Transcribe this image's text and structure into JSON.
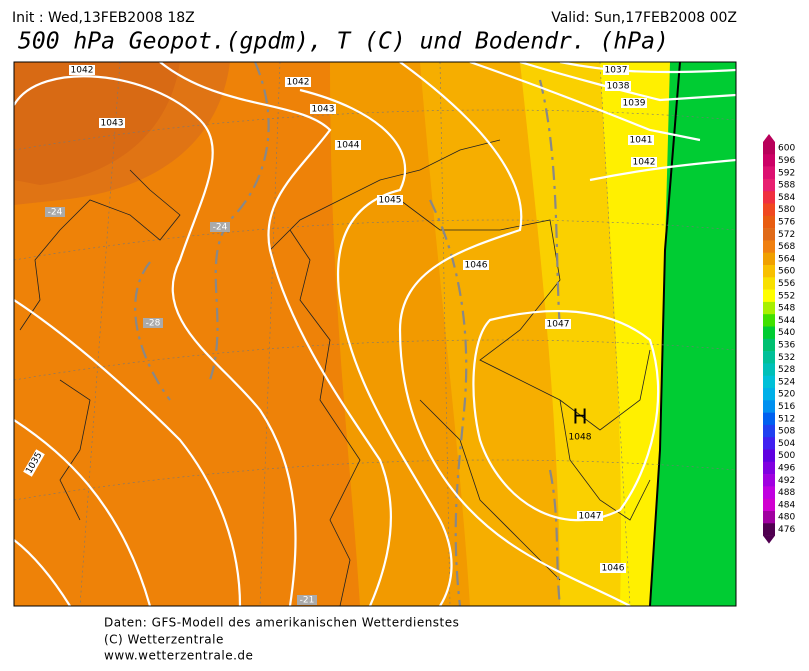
{
  "header": {
    "init": "Init : Wed,13FEB2008 18Z",
    "valid": "Valid: Sun,17FEB2008 00Z",
    "title": "500 hPa Geopot.(gpdm), T (C) und Bodendr. (hPa)"
  },
  "isobar_labels": [
    1042,
    1043,
    1042,
    1043,
    1044,
    1045,
    1046,
    1047,
    1048,
    1047,
    1046,
    1037,
    1038,
    1039,
    1041,
    1042,
    1035
  ],
  "high_label": "H",
  "isotherm_labels": [
    -24,
    -24,
    -28,
    -21
  ],
  "colorbar": {
    "ticks": [
      600,
      596,
      592,
      588,
      584,
      580,
      576,
      572,
      568,
      564,
      560,
      556,
      552,
      548,
      544,
      540,
      536,
      532,
      528,
      524,
      520,
      516,
      512,
      508,
      504,
      500,
      496,
      492,
      488,
      484,
      480,
      476
    ],
    "colors": [
      "#b8005a",
      "#cc0066",
      "#dc1070",
      "#e82070",
      "#f03040",
      "#f04820",
      "#e85c10",
      "#e06a18",
      "#f08010",
      "#f0a000",
      "#f8c000",
      "#f8e000",
      "#ffff00",
      "#a8f000",
      "#40e000",
      "#00cc33",
      "#00c070",
      "#00c098",
      "#00c0b8",
      "#00c0d8",
      "#00b0e8",
      "#0090f0",
      "#0060f0",
      "#2040f0",
      "#4020f0",
      "#6000e0",
      "#8000e0",
      "#a000e0",
      "#c000e0",
      "#d000d0",
      "#a000a0",
      "#500050"
    ]
  },
  "footer": [
    "Daten: GFS-Modell des amerikanischen Wetterdienstes",
    "(C) Wetterzentrale",
    "www.wetterzentrale.de"
  ]
}
